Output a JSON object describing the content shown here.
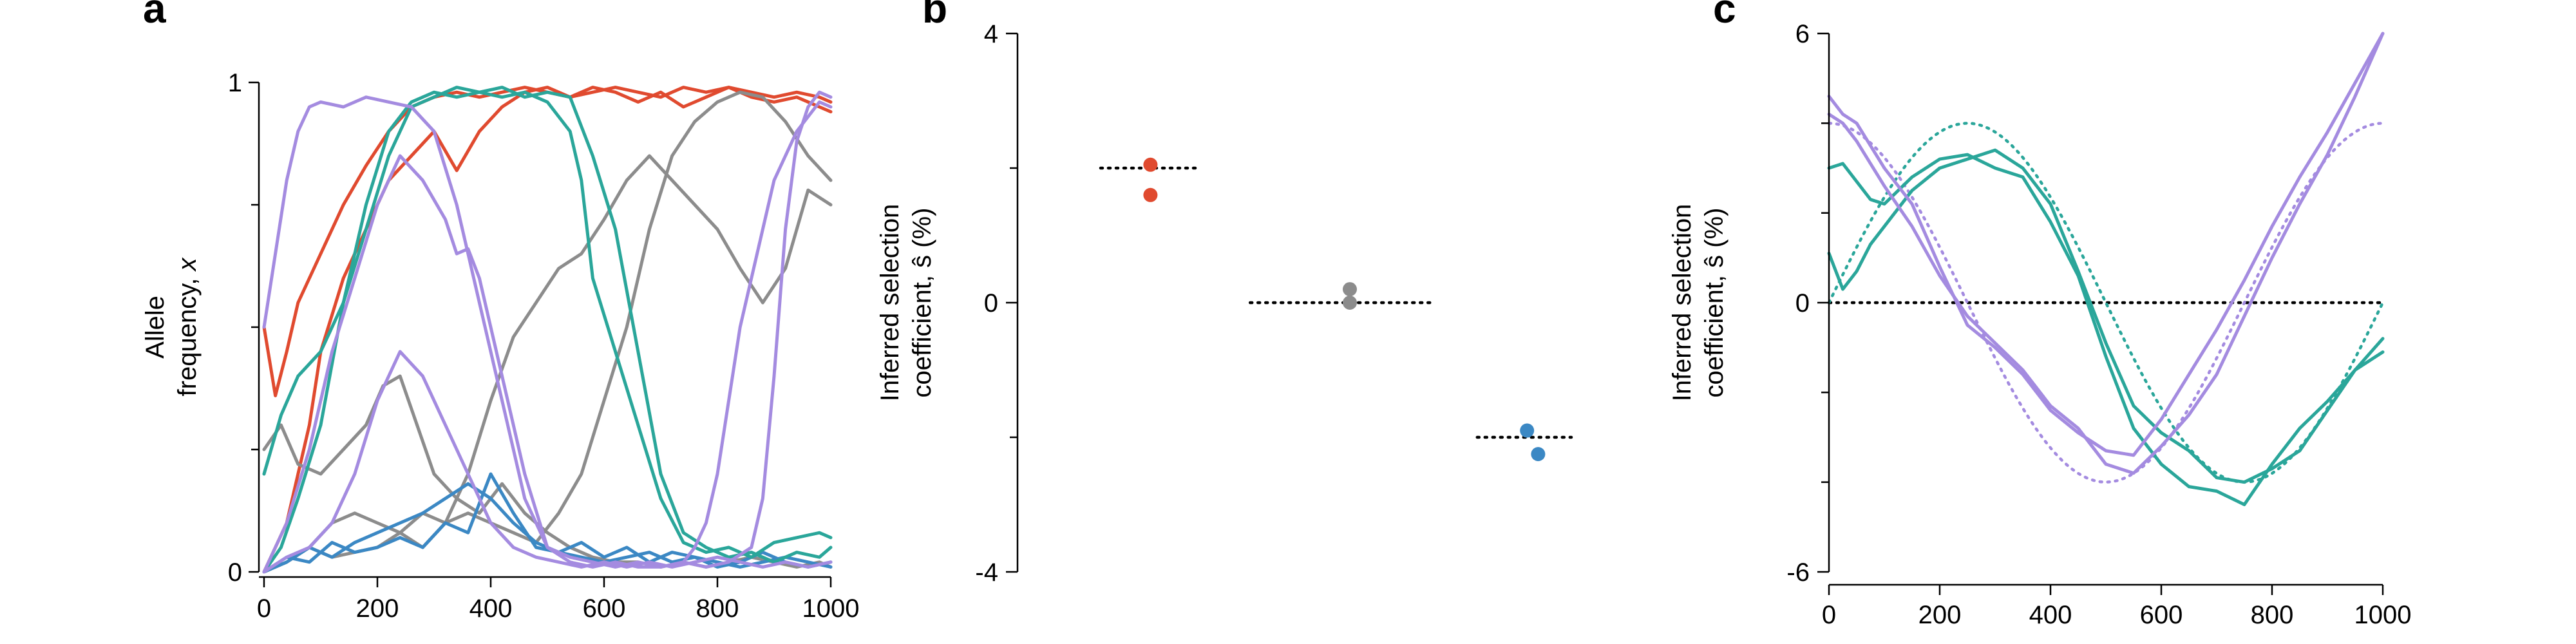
{
  "colors": {
    "red": "#e04a2f",
    "gray": "#8c8c8c",
    "blue": "#3b88c4",
    "teal": "#2aa69a",
    "purple": "#a48be0",
    "black": "#000000"
  },
  "chart_data": [
    {
      "panel": "a",
      "type": "line",
      "ylabel_line1": "Allele",
      "ylabel_line2": "frequency, x",
      "xlim": [
        0,
        1000
      ],
      "ylim": [
        0,
        1
      ],
      "xticks": [
        0,
        200,
        400,
        600,
        800,
        1000
      ],
      "yticks": [
        0,
        1
      ],
      "series": [
        {
          "color": "red",
          "x": [
            0,
            20,
            40,
            60,
            80,
            100,
            140,
            180,
            220,
            260,
            300,
            340,
            380,
            420,
            460,
            500,
            540,
            580,
            620,
            660,
            700,
            740,
            780,
            820,
            860,
            900,
            940,
            980,
            1000
          ],
          "y": [
            0.5,
            0.36,
            0.45,
            0.55,
            0.6,
            0.65,
            0.75,
            0.83,
            0.9,
            0.95,
            0.97,
            0.98,
            0.97,
            0.98,
            0.99,
            0.98,
            0.97,
            0.99,
            0.98,
            0.96,
            0.98,
            0.95,
            0.97,
            0.99,
            0.97,
            0.96,
            0.97,
            0.95,
            0.94
          ]
        },
        {
          "color": "red",
          "x": [
            0,
            20,
            40,
            60,
            80,
            100,
            140,
            180,
            220,
            260,
            300,
            340,
            380,
            420,
            460,
            500,
            540,
            580,
            620,
            660,
            700,
            740,
            780,
            820,
            860,
            900,
            940,
            980,
            1000
          ],
          "y": [
            0.0,
            0.05,
            0.1,
            0.2,
            0.3,
            0.45,
            0.6,
            0.7,
            0.8,
            0.85,
            0.9,
            0.82,
            0.9,
            0.95,
            0.98,
            0.99,
            0.97,
            0.98,
            0.99,
            0.98,
            0.97,
            0.99,
            0.98,
            0.99,
            0.98,
            0.97,
            0.98,
            0.97,
            0.96
          ]
        },
        {
          "color": "gray",
          "x": [
            0,
            30,
            60,
            100,
            140,
            180,
            210,
            240,
            270,
            300,
            340,
            380,
            420,
            460,
            500,
            540,
            580,
            620,
            660,
            700,
            740,
            780,
            820,
            860,
            900,
            940,
            980,
            1000
          ],
          "y": [
            0.25,
            0.3,
            0.22,
            0.2,
            0.25,
            0.3,
            0.38,
            0.4,
            0.3,
            0.2,
            0.15,
            0.12,
            0.18,
            0.12,
            0.08,
            0.05,
            0.03,
            0.02,
            0.02,
            0.01,
            0.02,
            0.01,
            0.02,
            0.03,
            0.02,
            0.01,
            0.02,
            0.01
          ]
        },
        {
          "color": "gray",
          "x": [
            0,
            40,
            80,
            120,
            160,
            200,
            240,
            280,
            320,
            360,
            400,
            440,
            480,
            520,
            560,
            600,
            640,
            680,
            720,
            760,
            800,
            840,
            880,
            920,
            960,
            1000
          ],
          "y": [
            0.0,
            0.02,
            0.05,
            0.03,
            0.04,
            0.05,
            0.08,
            0.12,
            0.1,
            0.2,
            0.35,
            0.48,
            0.55,
            0.62,
            0.65,
            0.72,
            0.8,
            0.85,
            0.8,
            0.75,
            0.7,
            0.62,
            0.55,
            0.62,
            0.78,
            0.75
          ]
        },
        {
          "color": "gray",
          "x": [
            0,
            40,
            80,
            120,
            160,
            200,
            240,
            280,
            320,
            360,
            400,
            440,
            480,
            520,
            560,
            600,
            640,
            680,
            720,
            760,
            800,
            840,
            880,
            920,
            960,
            1000
          ],
          "y": [
            0.0,
            0.02,
            0.05,
            0.1,
            0.12,
            0.1,
            0.08,
            0.05,
            0.1,
            0.12,
            0.1,
            0.08,
            0.06,
            0.12,
            0.2,
            0.35,
            0.5,
            0.7,
            0.85,
            0.92,
            0.96,
            0.98,
            0.97,
            0.92,
            0.85,
            0.8
          ]
        },
        {
          "color": "blue",
          "x": [
            0,
            40,
            80,
            120,
            160,
            200,
            240,
            280,
            320,
            360,
            400,
            440,
            480,
            520,
            560,
            600,
            640,
            680,
            720,
            760,
            800,
            840,
            880,
            920,
            960,
            1000
          ],
          "y": [
            0.0,
            0.02,
            0.05,
            0.03,
            0.06,
            0.08,
            0.1,
            0.12,
            0.15,
            0.18,
            0.15,
            0.1,
            0.06,
            0.04,
            0.03,
            0.02,
            0.03,
            0.04,
            0.02,
            0.03,
            0.02,
            0.01,
            0.02,
            0.03,
            0.02,
            0.01
          ]
        },
        {
          "color": "blue",
          "x": [
            0,
            40,
            80,
            120,
            160,
            200,
            240,
            280,
            320,
            360,
            400,
            440,
            480,
            520,
            560,
            600,
            640,
            680,
            720,
            760,
            800,
            840,
            880,
            920,
            960,
            1000
          ],
          "y": [
            0.0,
            0.03,
            0.02,
            0.06,
            0.04,
            0.05,
            0.07,
            0.05,
            0.1,
            0.08,
            0.2,
            0.12,
            0.05,
            0.04,
            0.06,
            0.03,
            0.05,
            0.02,
            0.04,
            0.03,
            0.01,
            0.02,
            0.04,
            0.02,
            0.01,
            0.02
          ]
        },
        {
          "color": "teal",
          "x": [
            0,
            30,
            60,
            100,
            140,
            180,
            220,
            260,
            300,
            340,
            380,
            420,
            460,
            500,
            540,
            560,
            580,
            620,
            660,
            700,
            740,
            780,
            820,
            860,
            900,
            940,
            980,
            1000
          ],
          "y": [
            0.2,
            0.32,
            0.4,
            0.45,
            0.55,
            0.7,
            0.85,
            0.95,
            0.97,
            0.99,
            0.98,
            0.97,
            0.98,
            0.96,
            0.9,
            0.8,
            0.6,
            0.45,
            0.3,
            0.15,
            0.06,
            0.04,
            0.05,
            0.03,
            0.06,
            0.07,
            0.08,
            0.07
          ]
        },
        {
          "color": "teal",
          "x": [
            0,
            30,
            60,
            100,
            140,
            180,
            220,
            260,
            300,
            340,
            380,
            420,
            460,
            500,
            540,
            580,
            620,
            660,
            700,
            740,
            780,
            820,
            860,
            900,
            940,
            980,
            1000
          ],
          "y": [
            0.0,
            0.05,
            0.15,
            0.3,
            0.55,
            0.75,
            0.9,
            0.96,
            0.98,
            0.97,
            0.98,
            0.99,
            0.97,
            0.98,
            0.97,
            0.85,
            0.7,
            0.45,
            0.2,
            0.08,
            0.05,
            0.03,
            0.04,
            0.02,
            0.04,
            0.03,
            0.05
          ]
        },
        {
          "color": "purple",
          "x": [
            0,
            20,
            40,
            60,
            80,
            100,
            140,
            180,
            220,
            260,
            300,
            340,
            380,
            420,
            460,
            500,
            540,
            580,
            620,
            660,
            700,
            740,
            780,
            820,
            860,
            880,
            900,
            920,
            940,
            960,
            980,
            1000
          ],
          "y": [
            0.5,
            0.65,
            0.8,
            0.9,
            0.95,
            0.96,
            0.95,
            0.97,
            0.96,
            0.95,
            0.9,
            0.75,
            0.55,
            0.35,
            0.15,
            0.05,
            0.03,
            0.02,
            0.01,
            0.02,
            0.01,
            0.02,
            0.01,
            0.02,
            0.05,
            0.15,
            0.4,
            0.7,
            0.88,
            0.95,
            0.98,
            0.97
          ]
        },
        {
          "color": "purple",
          "x": [
            0,
            40,
            80,
            120,
            160,
            200,
            240,
            280,
            320,
            340,
            360,
            380,
            420,
            460,
            500,
            540,
            580,
            620,
            660,
            700,
            740,
            760,
            780,
            800,
            820,
            840,
            860,
            880,
            900,
            940,
            980,
            1000
          ],
          "y": [
            0.0,
            0.1,
            0.25,
            0.45,
            0.6,
            0.75,
            0.85,
            0.8,
            0.72,
            0.65,
            0.66,
            0.6,
            0.4,
            0.2,
            0.05,
            0.02,
            0.01,
            0.02,
            0.01,
            0.01,
            0.02,
            0.05,
            0.1,
            0.2,
            0.35,
            0.5,
            0.6,
            0.7,
            0.8,
            0.9,
            0.96,
            0.95
          ]
        },
        {
          "color": "purple",
          "x": [
            0,
            40,
            80,
            120,
            160,
            200,
            240,
            280,
            320,
            360,
            400,
            440,
            480,
            520,
            560,
            600,
            640,
            680,
            720,
            760,
            800,
            840,
            880,
            920,
            960,
            1000
          ],
          "y": [
            0.0,
            0.03,
            0.05,
            0.1,
            0.2,
            0.35,
            0.45,
            0.4,
            0.3,
            0.2,
            0.1,
            0.05,
            0.03,
            0.02,
            0.01,
            0.02,
            0.01,
            0.02,
            0.01,
            0.02,
            0.03,
            0.02,
            0.01,
            0.02,
            0.01,
            0.02
          ]
        }
      ]
    },
    {
      "panel": "b",
      "type": "scatter",
      "ylabel_line1": "Inferred selection",
      "ylabel_line2": "coefficient, ŝ (%)",
      "ylim": [
        -4,
        4
      ],
      "yticks": [
        -4,
        0,
        4
      ],
      "true_values": [
        {
          "color": "red",
          "value": 2.0,
          "x_range": [
            0.15,
            0.33
          ]
        },
        {
          "color": "gray",
          "value": 0.0,
          "x_range": [
            0.42,
            0.75
          ]
        },
        {
          "color": "blue",
          "value": -2.0,
          "x_range": [
            0.83,
            1.0
          ]
        }
      ],
      "points": [
        {
          "color": "red",
          "x": 0.24,
          "y": 2.05
        },
        {
          "color": "red",
          "x": 0.24,
          "y": 1.6
        },
        {
          "color": "gray",
          "x": 0.6,
          "y": 0.2
        },
        {
          "color": "gray",
          "x": 0.6,
          "y": 0.0
        },
        {
          "color": "blue",
          "x": 0.92,
          "y": -1.9
        },
        {
          "color": "blue",
          "x": 0.94,
          "y": -2.25
        }
      ]
    },
    {
      "panel": "c",
      "type": "line",
      "ylabel_line1": "Inferred selection",
      "ylabel_line2": "coefficient, ŝ (%)",
      "xlim": [
        0,
        1000
      ],
      "ylim": [
        -6,
        6
      ],
      "xticks": [
        0,
        200,
        400,
        600,
        800,
        1000
      ],
      "yticks": [
        -6,
        0,
        6
      ],
      "zero_line": 0,
      "true_curves": [
        {
          "color": "teal",
          "function": "4*sin(2*pi*x/1000)"
        },
        {
          "color": "purple",
          "function": "4*cos(2*pi*x/1000)"
        }
      ],
      "series": [
        {
          "color": "teal",
          "x": [
            0,
            25,
            50,
            75,
            100,
            150,
            200,
            250,
            300,
            350,
            400,
            450,
            500,
            550,
            600,
            650,
            700,
            750,
            800,
            850,
            900,
            950,
            1000
          ],
          "y": [
            1.1,
            0.3,
            0.7,
            1.3,
            1.7,
            2.5,
            3.0,
            3.2,
            3.4,
            3.0,
            2.2,
            0.7,
            -0.9,
            -2.3,
            -2.9,
            -3.3,
            -3.9,
            -4.0,
            -3.7,
            -3.3,
            -2.4,
            -1.5,
            -1.1
          ]
        },
        {
          "color": "teal",
          "x": [
            0,
            25,
            50,
            75,
            100,
            150,
            200,
            250,
            300,
            350,
            400,
            450,
            500,
            550,
            600,
            650,
            700,
            750,
            800,
            850,
            900,
            950,
            1000
          ],
          "y": [
            3.0,
            3.1,
            2.7,
            2.3,
            2.2,
            2.8,
            3.2,
            3.3,
            3.0,
            2.8,
            1.8,
            0.6,
            -1.2,
            -2.8,
            -3.6,
            -4.1,
            -4.2,
            -4.5,
            -3.6,
            -2.8,
            -2.2,
            -1.5,
            -0.8
          ]
        },
        {
          "color": "purple",
          "x": [
            0,
            25,
            50,
            75,
            100,
            150,
            200,
            250,
            300,
            350,
            400,
            450,
            500,
            550,
            600,
            650,
            700,
            750,
            800,
            850,
            900,
            950,
            1000
          ],
          "y": [
            4.6,
            4.2,
            4.0,
            3.5,
            3.0,
            2.2,
            0.8,
            -0.5,
            -1.0,
            -1.6,
            -2.4,
            -2.9,
            -3.3,
            -3.4,
            -2.6,
            -1.6,
            -0.6,
            0.5,
            1.7,
            2.8,
            3.8,
            4.9,
            6.0
          ]
        },
        {
          "color": "purple",
          "x": [
            0,
            25,
            50,
            75,
            100,
            150,
            200,
            250,
            300,
            350,
            400,
            450,
            500,
            550,
            600,
            650,
            700,
            750,
            800,
            850,
            900,
            950,
            1000
          ],
          "y": [
            4.2,
            4.0,
            3.6,
            3.1,
            2.6,
            1.7,
            0.6,
            -0.3,
            -0.9,
            -1.5,
            -2.3,
            -2.8,
            -3.6,
            -3.8,
            -3.2,
            -2.5,
            -1.6,
            -0.3,
            1.0,
            2.2,
            3.3,
            4.6,
            6.1
          ]
        }
      ]
    }
  ],
  "panel_a": {
    "letter": "a"
  },
  "panel_b": {
    "letter": "b"
  },
  "panel_c": {
    "letter": "c"
  }
}
